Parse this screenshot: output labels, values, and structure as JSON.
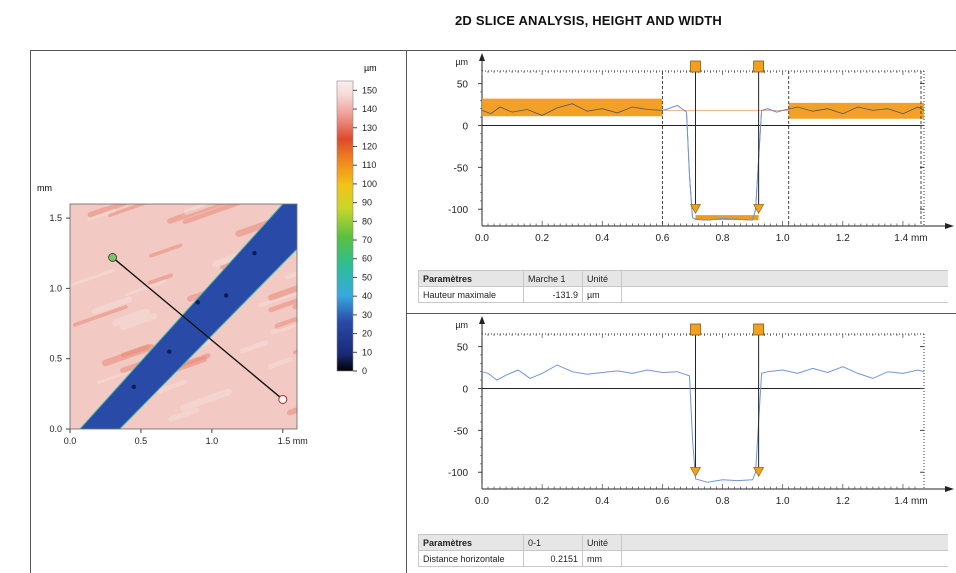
{
  "page_title": "2D SLICE ANALYSIS, HEIGHT AND WIDTH",
  "colors": {
    "band": "#f29b1a",
    "marker": "#f3a020",
    "profile": "#6f96d6",
    "land": "#f2c9c3",
    "channel": "#2a4aa8",
    "start_point": "#7cc26a",
    "end_point": "#ffffff"
  },
  "map_panel": {
    "unit_label": "mm",
    "x_ticks": [
      "0.0",
      "0.5",
      "1.0",
      "1.5 mm"
    ],
    "y_ticks": [
      "0.0",
      "0.5",
      "1.0",
      "1.5"
    ],
    "colorbar_unit": "µm",
    "colorbar_ticks": [
      "0",
      "10",
      "20",
      "30",
      "40",
      "50",
      "60",
      "70",
      "80",
      "90",
      "100",
      "110",
      "120",
      "130",
      "140",
      "150"
    ]
  },
  "top_panel": {
    "x_ticks": [
      "0.0",
      "0.2",
      "0.4",
      "0.6",
      "0.8",
      "1.0",
      "1.2",
      "1.4 mm"
    ],
    "y_ticks": [
      "50",
      "0",
      "-50",
      "-100"
    ],
    "y_unit": "µm",
    "table": {
      "col1": "Paramètres",
      "col2": "Marche 1",
      "col3": "Unité",
      "row_label": "Hauteur maximale",
      "row_value": "-131.9",
      "row_unit": "µm"
    }
  },
  "bottom_panel": {
    "x_ticks": [
      "0.0",
      "0.2",
      "0.4",
      "0.6",
      "0.8",
      "1.0",
      "1.2",
      "1.4 mm"
    ],
    "y_ticks": [
      "50",
      "0",
      "-50",
      "-100"
    ],
    "y_unit": "µm",
    "table": {
      "col1": "Paramètres",
      "col2": "0-1",
      "col3": "Unité",
      "row_label": "Distance horizontale",
      "row_value": "0.2151",
      "row_unit": "mm"
    }
  },
  "chart_data": [
    {
      "type": "heatmap",
      "title": "",
      "xlabel": "mm",
      "ylabel": "mm",
      "xlim": [
        0,
        1.6
      ],
      "ylim": [
        0,
        1.6
      ],
      "colorbar": {
        "unit": "µm",
        "range": [
          0,
          155
        ]
      },
      "channel_level_um": 20,
      "land_level_um": 135,
      "slice_line": {
        "start": [
          0.3,
          1.22
        ],
        "end": [
          1.5,
          0.21
        ]
      }
    },
    {
      "type": "line",
      "xlabel": "mm",
      "ylabel": "µm",
      "xlim": [
        0,
        1.47
      ],
      "ylim": [
        -120,
        65
      ],
      "series": [
        {
          "x": [
            0.0,
            0.03,
            0.06,
            0.1,
            0.15,
            0.2,
            0.25,
            0.3,
            0.35,
            0.4,
            0.45,
            0.5,
            0.55,
            0.6,
            0.62,
            0.65,
            0.68,
            0.69,
            0.7,
            0.71,
            0.75,
            0.8,
            0.85,
            0.9,
            0.91,
            0.92,
            0.93,
            0.95,
            0.98,
            1.0,
            1.05,
            1.1,
            1.15,
            1.2,
            1.25,
            1.3,
            1.35,
            1.4,
            1.45,
            1.47
          ],
          "y": [
            18,
            14,
            22,
            16,
            19,
            12,
            21,
            26,
            17,
            20,
            15,
            22,
            19,
            18,
            20,
            24,
            16,
            -60,
            -110,
            -112,
            -113,
            -111,
            -112,
            -113,
            -100,
            -40,
            18,
            20,
            16,
            18,
            22,
            17,
            20,
            14,
            22,
            18,
            20,
            14,
            22,
            18
          ]
        }
      ],
      "reference_bands": [
        {
          "x": [
            0.0,
            0.6
          ],
          "y": [
            11,
            32
          ]
        },
        {
          "x": [
            1.02,
            1.47
          ],
          "y": [
            8,
            27
          ]
        }
      ],
      "step_band": {
        "x": [
          0.71,
          0.92
        ],
        "y": [
          -113,
          -107
        ]
      },
      "reference_line_y": 18,
      "step_markers_x": [
        0.71,
        0.92
      ],
      "step_edges_x": [
        0.6,
        1.02,
        1.46
      ]
    },
    {
      "type": "line",
      "xlabel": "mm",
      "ylabel": "µm",
      "xlim": [
        0,
        1.47
      ],
      "ylim": [
        -120,
        65
      ],
      "series": [
        {
          "x": [
            0.0,
            0.02,
            0.05,
            0.08,
            0.12,
            0.16,
            0.2,
            0.25,
            0.3,
            0.35,
            0.4,
            0.45,
            0.5,
            0.55,
            0.6,
            0.65,
            0.69,
            0.7,
            0.71,
            0.75,
            0.8,
            0.85,
            0.9,
            0.91,
            0.92,
            0.93,
            0.95,
            1.0,
            1.05,
            1.1,
            1.15,
            1.2,
            1.25,
            1.3,
            1.35,
            1.4,
            1.45,
            1.47
          ],
          "y": [
            20,
            18,
            10,
            16,
            22,
            12,
            18,
            28,
            20,
            17,
            19,
            21,
            18,
            22,
            19,
            20,
            15,
            -60,
            -108,
            -112,
            -109,
            -110,
            -109,
            -100,
            -40,
            18,
            20,
            22,
            18,
            24,
            19,
            26,
            18,
            12,
            20,
            18,
            22,
            20
          ]
        }
      ],
      "step_markers_x": [
        0.71,
        0.92
      ]
    }
  ]
}
